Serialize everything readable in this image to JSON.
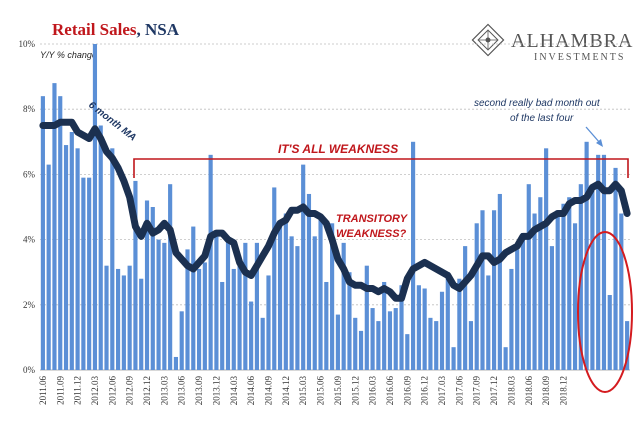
{
  "title": {
    "main": "Retail Sales",
    "sub": ", NSA"
  },
  "logo": {
    "name": "ALHAMBRA",
    "tagline": "INVESTMENTS"
  },
  "annotations": {
    "ma_label": "6 month MA",
    "weakness": "IT'S ALL WEAKNESS",
    "transitory_line1": "TRANSITORY",
    "transitory_line2": "WEAKNESS?",
    "note_line1": "second really bad month out",
    "note_line2": "of the last four"
  },
  "colors": {
    "bar": "#5b8fd6",
    "ma_line": "#1b3050",
    "accent_red": "#c0171c",
    "grid": "#bfbfbf"
  },
  "chart_data": {
    "type": "bar",
    "ylabel": "Y/Y % change",
    "ylim": [
      0,
      10
    ],
    "yticks": [
      "0%",
      "2%",
      "4%",
      "6%",
      "8%",
      "10%"
    ],
    "start": "2011-06",
    "xtick_labels": [
      "2011.06",
      "2011.09",
      "2011.12",
      "2012.03",
      "2012.06",
      "2012.09",
      "2012.12",
      "2013.03",
      "2013.06",
      "2013.09",
      "2013.12",
      "2014.03",
      "2014.06",
      "2014.09",
      "2014.12",
      "2015.03",
      "2015.06",
      "2015.09",
      "2015.12",
      "2016.03",
      "2016.06",
      "2016.09",
      "2016.12",
      "2017.03",
      "2017.06",
      "2017.09",
      "2017.12",
      "2018.03",
      "2018.06",
      "2018.09",
      "2018.12"
    ],
    "values": [
      8.4,
      6.3,
      8.8,
      8.4,
      6.9,
      7.3,
      6.8,
      5.9,
      5.9,
      10.0,
      7.5,
      3.2,
      6.8,
      3.1,
      2.9,
      3.2,
      5.8,
      2.8,
      5.2,
      5.0,
      4.0,
      3.9,
      5.7,
      0.4,
      1.8,
      3.7,
      4.4,
      3.1,
      3.3,
      6.6,
      4.2,
      2.7,
      4.1,
      3.1,
      3.2,
      3.9,
      2.1,
      3.9,
      1.6,
      2.9,
      5.6,
      4.5,
      4.8,
      4.1,
      3.8,
      6.3,
      5.4,
      4.1,
      4.7,
      2.7,
      4.5,
      1.7,
      3.9,
      3.0,
      1.6,
      1.2,
      3.2,
      1.9,
      1.5,
      2.7,
      1.8,
      1.9,
      2.6,
      1.1,
      7.0,
      2.6,
      2.5,
      1.6,
      1.5,
      2.4,
      3.0,
      0.7,
      2.8,
      3.8,
      1.5,
      4.5,
      4.9,
      2.9,
      4.9,
      5.4,
      0.7,
      3.1,
      3.7,
      4.2,
      5.7,
      4.8,
      5.3,
      6.8,
      3.8,
      4.9,
      5.1,
      5.3,
      4.5,
      5.7,
      7.0,
      5.5,
      6.6,
      6.6,
      2.3,
      6.2,
      4.8,
      1.5
    ],
    "series": [
      {
        "name": "6 month MA",
        "type": "line",
        "values": [
          7.5,
          7.5,
          7.5,
          7.6,
          7.6,
          7.6,
          7.3,
          7.2,
          7.1,
          7.4,
          7.1,
          6.7,
          6.5,
          6.2,
          5.8,
          5.3,
          4.4,
          4.1,
          4.5,
          4.2,
          4.3,
          4.5,
          4.3,
          3.6,
          3.4,
          3.2,
          3.1,
          3.3,
          3.5,
          4.1,
          4.2,
          4.2,
          4.0,
          3.9,
          3.3,
          3.0,
          2.9,
          3.2,
          3.5,
          3.8,
          4.2,
          4.5,
          4.6,
          4.9,
          4.9,
          5.0,
          4.8,
          4.8,
          4.7,
          4.5,
          4.0,
          3.4,
          3.1,
          2.7,
          2.6,
          2.6,
          2.5,
          2.5,
          2.4,
          2.5,
          2.4,
          2.2,
          2.2,
          2.8,
          3.1,
          3.2,
          3.3,
          3.2,
          3.1,
          3.0,
          2.9,
          2.6,
          2.5,
          2.7,
          2.9,
          3.2,
          3.5,
          3.5,
          3.3,
          3.4,
          3.6,
          3.7,
          3.8,
          4.1,
          4.1,
          4.3,
          4.4,
          4.5,
          4.7,
          4.8,
          4.8,
          5.1,
          5.2,
          5.2,
          5.3,
          5.6,
          5.7,
          5.5,
          5.5,
          5.7,
          5.5,
          4.8
        ]
      }
    ]
  }
}
